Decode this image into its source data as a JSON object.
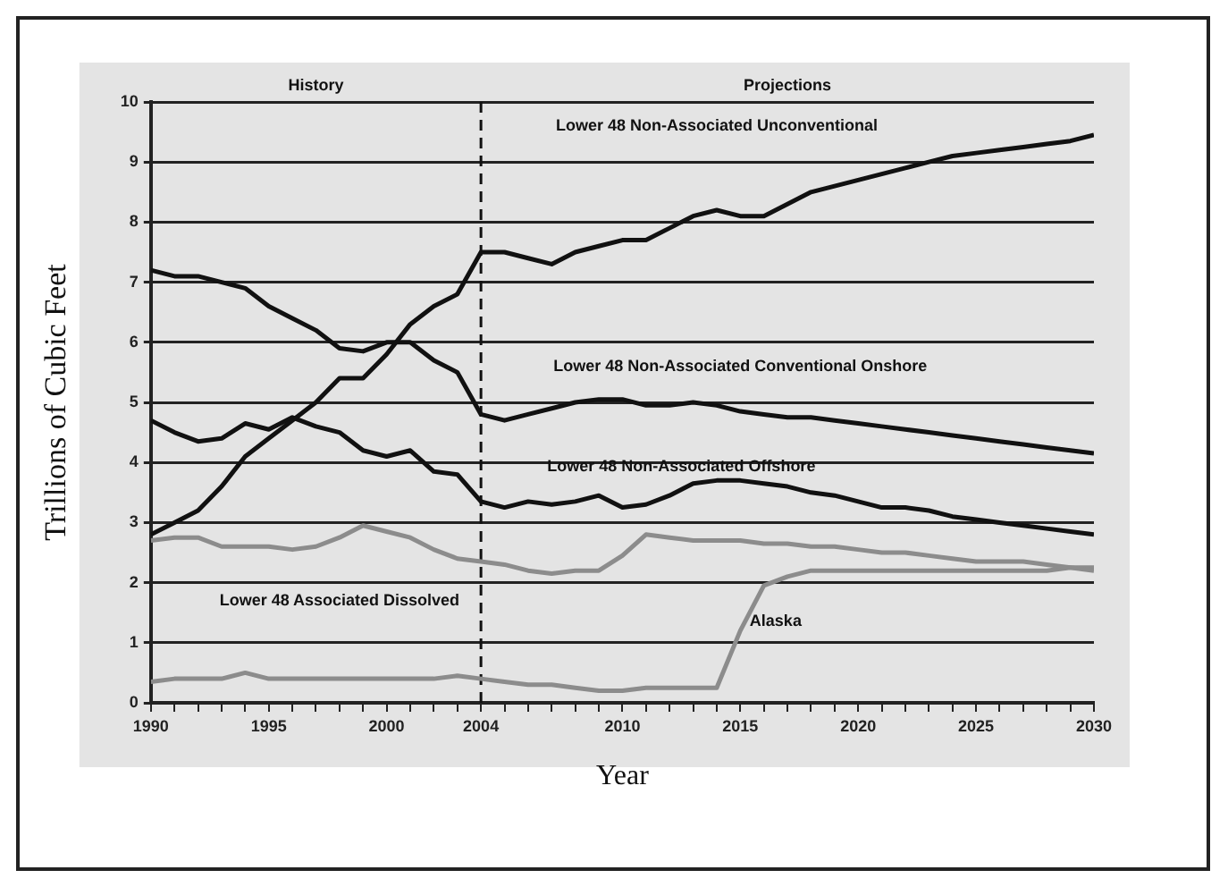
{
  "chart_data": {
    "type": "line",
    "xlabel": "Year",
    "ylabel": "Trillions of Cubic Feet",
    "x": [
      1990,
      1991,
      1992,
      1993,
      1994,
      1995,
      1996,
      1997,
      1998,
      1999,
      2000,
      2001,
      2002,
      2003,
      2004,
      2005,
      2006,
      2007,
      2008,
      2009,
      2010,
      2011,
      2012,
      2013,
      2014,
      2015,
      2016,
      2017,
      2018,
      2019,
      2020,
      2021,
      2022,
      2023,
      2024,
      2025,
      2026,
      2027,
      2028,
      2029,
      2030
    ],
    "series": [
      {
        "name": "Lower 48 Non-Associated Unconventional",
        "color": "#111111",
        "values": [
          2.8,
          3.0,
          3.2,
          3.6,
          4.1,
          4.4,
          4.7,
          5.0,
          5.4,
          5.4,
          5.8,
          6.3,
          6.6,
          6.8,
          7.5,
          7.5,
          7.4,
          7.3,
          7.5,
          7.6,
          7.7,
          7.7,
          7.9,
          8.1,
          8.2,
          8.1,
          8.1,
          8.3,
          8.5,
          8.6,
          8.7,
          8.8,
          8.9,
          9.0,
          9.1,
          9.15,
          9.2,
          9.25,
          9.3,
          9.35,
          9.45
        ]
      },
      {
        "name": "Lower 48 Non-Associated Conventional Onshore",
        "color": "#111111",
        "values": [
          7.2,
          7.1,
          7.1,
          7.0,
          6.9,
          6.6,
          6.4,
          6.2,
          5.9,
          5.85,
          6.0,
          6.0,
          5.7,
          5.5,
          4.8,
          4.7,
          4.8,
          4.9,
          5.0,
          5.05,
          5.05,
          4.95,
          4.95,
          5.0,
          4.95,
          4.85,
          4.8,
          4.75,
          4.75,
          4.7,
          4.65,
          4.6,
          4.55,
          4.5,
          4.45,
          4.4,
          4.35,
          4.3,
          4.25,
          4.2,
          4.15
        ]
      },
      {
        "name": "Lower 48 Non-Associated Offshore",
        "color": "#111111",
        "values": [
          4.7,
          4.5,
          4.35,
          4.4,
          4.65,
          4.55,
          4.75,
          4.6,
          4.5,
          4.2,
          4.1,
          4.2,
          3.85,
          3.8,
          3.35,
          3.25,
          3.35,
          3.3,
          3.35,
          3.45,
          3.25,
          3.3,
          3.45,
          3.65,
          3.7,
          3.7,
          3.65,
          3.6,
          3.5,
          3.45,
          3.35,
          3.25,
          3.25,
          3.2,
          3.1,
          3.05,
          3.0,
          2.95,
          2.9,
          2.85,
          2.8
        ]
      },
      {
        "name": "Lower 48 Associated Dissolved",
        "color": "#8c8c8c",
        "values": [
          2.7,
          2.75,
          2.75,
          2.6,
          2.6,
          2.6,
          2.55,
          2.6,
          2.75,
          2.95,
          2.85,
          2.75,
          2.55,
          2.4,
          2.35,
          2.3,
          2.2,
          2.15,
          2.2,
          2.2,
          2.45,
          2.8,
          2.75,
          2.7,
          2.7,
          2.7,
          2.65,
          2.65,
          2.6,
          2.6,
          2.55,
          2.5,
          2.5,
          2.45,
          2.4,
          2.35,
          2.35,
          2.35,
          2.3,
          2.25,
          2.2
        ]
      },
      {
        "name": "Alaska",
        "color": "#8c8c8c",
        "values": [
          0.35,
          0.4,
          0.4,
          0.4,
          0.5,
          0.4,
          0.4,
          0.4,
          0.4,
          0.4,
          0.4,
          0.4,
          0.4,
          0.45,
          0.4,
          0.35,
          0.3,
          0.3,
          0.25,
          0.2,
          0.2,
          0.25,
          0.25,
          0.25,
          0.25,
          1.2,
          1.95,
          2.1,
          2.2,
          2.2,
          2.2,
          2.2,
          2.2,
          2.2,
          2.2,
          2.2,
          2.2,
          2.2,
          2.2,
          2.25,
          2.25
        ]
      }
    ],
    "xlim": [
      1990,
      2030
    ],
    "xticks": [
      1990,
      {
        "value": 1991,
        "label": null
      },
      {
        "value": 1992,
        "label": null
      },
      {
        "value": 1993,
        "label": null
      },
      {
        "value": 1994,
        "label": null
      },
      1995,
      {
        "value": 1996,
        "label": null
      },
      {
        "value": 1997,
        "label": null
      },
      {
        "value": 1998,
        "label": null
      },
      {
        "value": 1999,
        "label": null
      },
      2000,
      {
        "value": 2001,
        "label": null
      },
      {
        "value": 2002,
        "label": null
      },
      {
        "value": 2003,
        "label": null
      },
      2004,
      {
        "value": 2005,
        "label": null
      },
      {
        "value": 2006,
        "label": null
      },
      {
        "value": 2007,
        "label": null
      },
      {
        "value": 2008,
        "label": null
      },
      {
        "value": 2009,
        "label": null
      },
      2010,
      {
        "value": 2011,
        "label": null
      },
      {
        "value": 2012,
        "label": null
      },
      {
        "value": 2013,
        "label": null
      },
      {
        "value": 2014,
        "label": null
      },
      2015,
      {
        "value": 2016,
        "label": null
      },
      {
        "value": 2017,
        "label": null
      },
      {
        "value": 2018,
        "label": null
      },
      {
        "value": 2019,
        "label": null
      },
      2020,
      {
        "value": 2021,
        "label": null
      },
      {
        "value": 2022,
        "label": null
      },
      {
        "value": 2023,
        "label": null
      },
      {
        "value": 2024,
        "label": null
      },
      2025,
      {
        "value": 2026,
        "label": null
      },
      {
        "value": 2027,
        "label": null
      },
      {
        "value": 2028,
        "label": null
      },
      {
        "value": 2029,
        "label": null
      },
      2030
    ],
    "ylim": [
      0,
      10
    ],
    "yticks": [
      0,
      1,
      2,
      3,
      4,
      5,
      6,
      7,
      8,
      9,
      10
    ],
    "ref_lines": [
      {
        "axis": "x",
        "value": 2004,
        "line_style": "dashed",
        "color": "#111111"
      }
    ],
    "annotations": [
      "History",
      "Projections"
    ],
    "grid": "y",
    "legend": false,
    "marker": "none",
    "line_style": "solid"
  }
}
